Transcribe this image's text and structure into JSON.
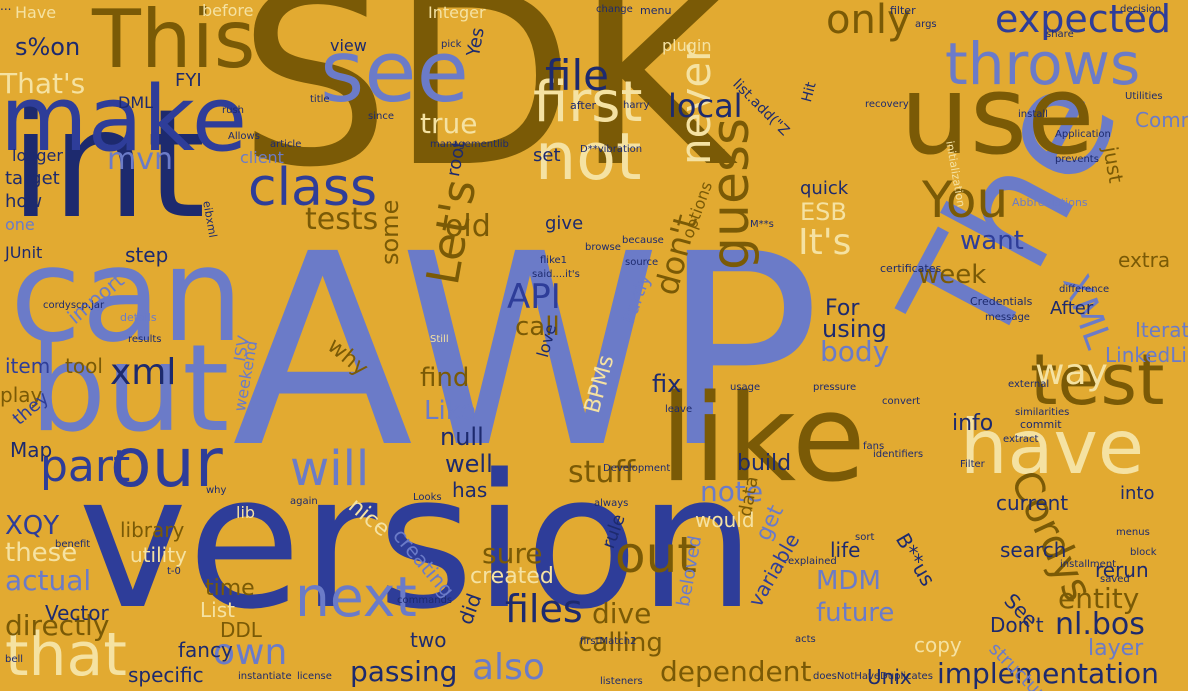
{
  "title": "",
  "background": "#e2aa31",
  "palette": {
    "dark_brown": "#7a5a06",
    "periwinkle": "#6b7bc8",
    "navy": "#1d2a6e",
    "royal_blue": "#2e3d99",
    "cream": "#f5e2a2",
    "light_gold": "#f2d273"
  },
  "words": [
    {
      "text": "SDK",
      "color": "dark_brown"
    },
    {
      "text": "AWP",
      "color": "periwinkle"
    },
    {
      "text": "version",
      "color": "royal_blue"
    },
    {
      "text": "int",
      "color": "navy"
    },
    {
      "text": "can",
      "color": "periwinkle"
    },
    {
      "text": "but",
      "color": "periwinkle"
    },
    {
      "text": "The",
      "color": "periwinkle"
    },
    {
      "text": "like",
      "color": "dark_brown"
    },
    {
      "text": "use",
      "color": "dark_brown"
    },
    {
      "text": "make",
      "color": "royal_blue"
    },
    {
      "text": "This",
      "color": "dark_brown"
    },
    {
      "text": "see",
      "color": "periwinkle"
    },
    {
      "text": "have",
      "color": "cream"
    },
    {
      "text": "throws",
      "color": "periwinkle"
    },
    {
      "text": "test",
      "color": "dark_brown"
    },
    {
      "text": "our",
      "color": "royal_blue"
    },
    {
      "text": "that",
      "color": "cream"
    },
    {
      "text": "next",
      "color": "periwinkle"
    },
    {
      "text": "class",
      "color": "royal_blue"
    },
    {
      "text": "first",
      "color": "cream"
    },
    {
      "text": "not",
      "color": "cream"
    },
    {
      "text": "You",
      "color": "dark_brown"
    },
    {
      "text": "will",
      "color": "periwinkle"
    },
    {
      "text": "Let's",
      "color": "dark_brown"
    },
    {
      "text": "file",
      "color": "navy"
    },
    {
      "text": "expected",
      "color": "royal_blue"
    },
    {
      "text": "guess",
      "color": "dark_brown"
    },
    {
      "text": "part",
      "color": "royal_blue"
    },
    {
      "text": "out",
      "color": "dark_brown"
    },
    {
      "text": "Cordys",
      "color": "dark_brown"
    },
    {
      "text": "XML",
      "color": "periwinkle"
    },
    {
      "text": "way",
      "color": "cream"
    },
    {
      "text": "own",
      "color": "periwinkle"
    },
    {
      "text": "files",
      "color": "navy"
    },
    {
      "text": "also",
      "color": "periwinkle"
    },
    {
      "text": "xml",
      "color": "navy"
    },
    {
      "text": "never",
      "color": "cream"
    },
    {
      "text": "It's",
      "color": "cream"
    },
    {
      "text": "local",
      "color": "navy"
    },
    {
      "text": "only",
      "color": "dark_brown"
    },
    {
      "text": "tests",
      "color": "dark_brown"
    },
    {
      "text": "API",
      "color": "royal_blue"
    },
    {
      "text": "mvn",
      "color": "periwinkle"
    },
    {
      "text": "don't",
      "color": "dark_brown"
    },
    {
      "text": "note",
      "color": "periwinkle"
    },
    {
      "text": "stuff",
      "color": "dark_brown"
    },
    {
      "text": "true",
      "color": "cream"
    },
    {
      "text": "old",
      "color": "dark_brown"
    },
    {
      "text": "body",
      "color": "periwinkle"
    },
    {
      "text": "week",
      "color": "dark_brown"
    },
    {
      "text": "want",
      "color": "royal_blue"
    },
    {
      "text": "ESB",
      "color": "cream"
    },
    {
      "text": "implementation",
      "color": "navy"
    },
    {
      "text": "dependent",
      "color": "dark_brown"
    },
    {
      "text": "passing",
      "color": "navy"
    },
    {
      "text": "MDM",
      "color": "periwinkle"
    },
    {
      "text": "future",
      "color": "periwinkle"
    },
    {
      "text": "entity",
      "color": "dark_brown"
    },
    {
      "text": "nl.bos",
      "color": "navy"
    },
    {
      "text": "these",
      "color": "cream"
    },
    {
      "text": "actual",
      "color": "periwinkle"
    },
    {
      "text": "directly",
      "color": "dark_brown"
    },
    {
      "text": "XQY",
      "color": "royal_blue"
    },
    {
      "text": "sure",
      "color": "dark_brown"
    },
    {
      "text": "created",
      "color": "cream"
    },
    {
      "text": "calling",
      "color": "dark_brown"
    },
    {
      "text": "dive",
      "color": "dark_brown"
    },
    {
      "text": "Like",
      "color": "periwinkle"
    },
    {
      "text": "find",
      "color": "dark_brown"
    },
    {
      "text": "null",
      "color": "navy"
    },
    {
      "text": "well",
      "color": "navy"
    },
    {
      "text": "has",
      "color": "navy"
    },
    {
      "text": "fix",
      "color": "navy"
    },
    {
      "text": "build",
      "color": "navy"
    },
    {
      "text": "info",
      "color": "navy"
    },
    {
      "text": "call",
      "color": "dark_brown"
    },
    {
      "text": "using",
      "color": "navy"
    },
    {
      "text": "For",
      "color": "navy"
    },
    {
      "text": "some",
      "color": "dark_brown"
    },
    {
      "text": "why",
      "color": "dark_brown"
    },
    {
      "text": "import",
      "color": "periwinkle"
    },
    {
      "text": "item",
      "color": "royal_blue"
    },
    {
      "text": "tool",
      "color": "dark_brown"
    },
    {
      "text": "play",
      "color": "dark_brown"
    },
    {
      "text": "Map",
      "color": "navy"
    },
    {
      "text": "they",
      "color": "royal_blue"
    },
    {
      "text": "library",
      "color": "dark_brown"
    },
    {
      "text": "utility",
      "color": "cream"
    },
    {
      "text": "time",
      "color": "dark_brown"
    },
    {
      "text": "List",
      "color": "cream"
    },
    {
      "text": "DDL",
      "color": "dark_brown"
    },
    {
      "text": "fancy",
      "color": "navy"
    },
    {
      "text": "specific",
      "color": "navy"
    },
    {
      "text": "Vector",
      "color": "navy"
    },
    {
      "text": "two",
      "color": "navy"
    },
    {
      "text": "did",
      "color": "navy"
    },
    {
      "text": "nice",
      "color": "cream"
    },
    {
      "text": "creating",
      "color": "periwinkle"
    },
    {
      "text": "rule",
      "color": "navy"
    },
    {
      "text": "get",
      "color": "periwinkle"
    },
    {
      "text": "data",
      "color": "dark_brown"
    },
    {
      "text": "variable",
      "color": "royal_blue"
    },
    {
      "text": "would",
      "color": "cream"
    },
    {
      "text": "life",
      "color": "navy"
    },
    {
      "text": "into",
      "color": "navy"
    },
    {
      "text": "current",
      "color": "navy"
    },
    {
      "text": "rerun",
      "color": "navy"
    },
    {
      "text": "See",
      "color": "navy"
    },
    {
      "text": "Don't",
      "color": "navy"
    },
    {
      "text": "layer",
      "color": "periwinkle"
    },
    {
      "text": "structure",
      "color": "periwinkle"
    },
    {
      "text": "copy",
      "color": "cream"
    },
    {
      "text": "Unix",
      "color": "navy"
    },
    {
      "text": "search",
      "color": "navy"
    },
    {
      "text": "B**us",
      "color": "navy"
    },
    {
      "text": "LinkedList",
      "color": "periwinkle"
    },
    {
      "text": "Iterator",
      "color": "periwinkle"
    },
    {
      "text": "After",
      "color": "navy"
    },
    {
      "text": "extra",
      "color": "dark_brown"
    },
    {
      "text": "just",
      "color": "dark_brown"
    },
    {
      "text": "CommandLine",
      "color": "periwinkle"
    },
    {
      "text": "quick",
      "color": "navy"
    },
    {
      "text": "give",
      "color": "navy"
    },
    {
      "text": "step",
      "color": "navy"
    },
    {
      "text": "set",
      "color": "navy"
    },
    {
      "text": "root",
      "color": "navy"
    },
    {
      "text": "client",
      "color": "periwinkle"
    },
    {
      "text": "target",
      "color": "navy"
    },
    {
      "text": "logger",
      "color": "navy"
    },
    {
      "text": "how",
      "color": "navy"
    },
    {
      "text": "one",
      "color": "periwinkle"
    },
    {
      "text": "JUnit",
      "color": "navy"
    },
    {
      "text": "That's",
      "color": "cream"
    },
    {
      "text": "s%on",
      "color": "navy"
    },
    {
      "text": "Have",
      "color": "cream"
    },
    {
      "text": "before",
      "color": "cream"
    },
    {
      "text": "Integer",
      "color": "cream"
    },
    {
      "text": "FYI",
      "color": "navy"
    },
    {
      "text": "DML",
      "color": "navy"
    },
    {
      "text": "view",
      "color": "navy"
    },
    {
      "text": "Yes",
      "color": "navy"
    },
    {
      "text": "plugin",
      "color": "cream"
    },
    {
      "text": "BPMs",
      "color": "cream"
    },
    {
      "text": "Partly",
      "color": "periwinkle"
    },
    {
      "text": "options",
      "color": "dark_brown"
    },
    {
      "text": "lib",
      "color": "cream"
    },
    {
      "text": "ISV",
      "color": "periwinkle"
    },
    {
      "text": "weekend",
      "color": "periwinkle"
    },
    {
      "text": "beloved",
      "color": "periwinkle"
    },
    {
      "text": "eibxml",
      "color": "navy"
    },
    {
      "text": "Abbreviations",
      "color": "periwinkle"
    },
    {
      "text": "Credentials",
      "color": "navy"
    },
    {
      "text": "message",
      "color": "navy"
    },
    {
      "text": "certificates",
      "color": "navy"
    },
    {
      "text": "Hit",
      "color": "navy"
    },
    {
      "text": "after",
      "color": "navy"
    },
    {
      "text": "commit",
      "color": "navy"
    },
    {
      "text": "doesNotHaveDuplicates",
      "color": "navy"
    },
    {
      "text": "firstMatch2",
      "color": "navy"
    },
    {
      "text": "listeners",
      "color": "navy"
    },
    {
      "text": "initialization",
      "color": "cream"
    },
    {
      "text": "filter",
      "color": "navy"
    },
    {
      "text": "decision",
      "color": "navy"
    },
    {
      "text": "Utilities",
      "color": "navy"
    },
    {
      "text": "Application",
      "color": "navy"
    },
    {
      "text": "install",
      "color": "navy"
    },
    {
      "text": "change",
      "color": "navy"
    },
    {
      "text": "menu",
      "color": "navy"
    },
    {
      "text": "said....it's",
      "color": "navy"
    },
    {
      "text": "pressure",
      "color": "navy"
    },
    {
      "text": "identifiers",
      "color": "navy"
    },
    {
      "text": "external",
      "color": "navy"
    },
    {
      "text": "difference",
      "color": "navy"
    },
    {
      "text": "cordyscp.jar",
      "color": "navy"
    },
    {
      "text": "details",
      "color": "periwinkle"
    },
    {
      "text": "results",
      "color": "navy"
    },
    {
      "text": "flike1",
      "color": "navy"
    },
    {
      "text": "source",
      "color": "navy"
    },
    {
      "text": "again",
      "color": "navy"
    },
    {
      "text": "D**vibration",
      "color": "navy"
    },
    {
      "text": "article",
      "color": "navy"
    },
    {
      "text": "Allows",
      "color": "navy"
    },
    {
      "text": "rush",
      "color": "navy"
    },
    {
      "text": "title",
      "color": "navy"
    },
    {
      "text": "since",
      "color": "navy"
    },
    {
      "text": "because",
      "color": "navy"
    },
    {
      "text": "convert",
      "color": "navy"
    },
    {
      "text": "explained",
      "color": "navy"
    },
    {
      "text": "browse",
      "color": "navy"
    },
    {
      "text": "acts",
      "color": "navy"
    },
    {
      "text": "benefit",
      "color": "navy"
    },
    {
      "text": "Looks",
      "color": "navy"
    },
    {
      "text": "sort",
      "color": "navy"
    },
    {
      "text": "args",
      "color": "navy"
    },
    {
      "text": "menus",
      "color": "navy"
    },
    {
      "text": "recovery",
      "color": "navy"
    },
    {
      "text": "similarities",
      "color": "navy"
    },
    {
      "text": "prevents",
      "color": "navy"
    },
    {
      "text": "share",
      "color": "navy"
    },
    {
      "text": "usage",
      "color": "navy"
    },
    {
      "text": "Development",
      "color": "navy"
    },
    {
      "text": "always",
      "color": "navy"
    },
    {
      "text": "commands",
      "color": "navy"
    },
    {
      "text": "harry",
      "color": "navy"
    },
    {
      "text": "managementlib",
      "color": "navy"
    },
    {
      "text": "list.add(\"Z",
      "color": "navy"
    },
    {
      "text": "M**s",
      "color": "navy"
    },
    {
      "text": "why",
      "color": "navy"
    },
    {
      "text": "pick",
      "color": "navy"
    },
    {
      "text": "t-0",
      "color": "navy"
    },
    {
      "text": "bell",
      "color": "navy"
    },
    {
      "text": "instantiate",
      "color": "navy"
    },
    {
      "text": "license",
      "color": "navy"
    },
    {
      "text": "installment",
      "color": "navy"
    },
    {
      "text": "saved",
      "color": "navy"
    },
    {
      "text": "block",
      "color": "navy"
    },
    {
      "text": "fans",
      "color": "navy"
    },
    {
      "text": "Filter",
      "color": "navy"
    },
    {
      "text": "extract",
      "color": "navy"
    },
    {
      "text": "leave",
      "color": "navy"
    },
    {
      "text": "love",
      "color": "navy"
    },
    {
      "text": "Still",
      "color": "cream"
    },
    {
      "text": "...",
      "color": "navy"
    }
  ]
}
